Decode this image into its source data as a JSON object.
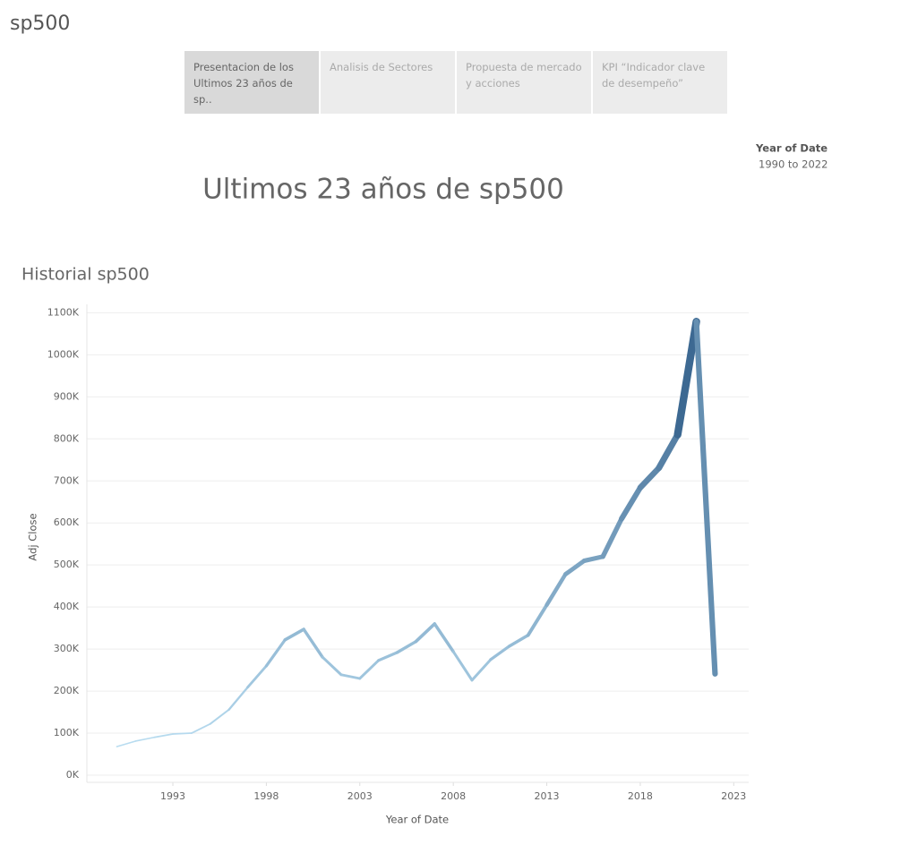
{
  "header": {
    "title": "sp500"
  },
  "tabs": [
    "Presentacion de los Ultimos 23 años de sp..",
    "Analisis de Sectores",
    "Propuesta de mercado y acciones",
    "KPI “Indicador clave de desempeño”"
  ],
  "filter": {
    "label": "Year of Date",
    "value": "1990 to 2022"
  },
  "dashboard_title": "Ultimos 23 años de sp500",
  "chart_data": {
    "type": "line",
    "title": "Historial sp500",
    "x_label": "Year of Date",
    "y_label": "Adj Close",
    "x": [
      1990,
      1991,
      1992,
      1993,
      1994,
      1995,
      1996,
      1997,
      1998,
      1999,
      2000,
      2001,
      2002,
      2003,
      2004,
      2005,
      2006,
      2007,
      2008,
      2009,
      2010,
      2011,
      2012,
      2013,
      2014,
      2015,
      2016,
      2017,
      2018,
      2019,
      2020,
      2021,
      2022
    ],
    "series": [
      {
        "name": "Adj Close",
        "color_range": [
          "#b9ddf1",
          "#2a5783"
        ],
        "values": [
          68000,
          81000,
          90000,
          98000,
          100000,
          122000,
          156000,
          209000,
          260000,
          322000,
          347000,
          281000,
          239000,
          230000,
          273000,
          292000,
          318000,
          360000,
          294000,
          226000,
          275000,
          307000,
          333000,
          405000,
          478000,
          510000,
          520000,
          610000,
          684000,
          731000,
          810000,
          1079000,
          241000
        ]
      }
    ],
    "xlim": [
      1988.4,
      2023.8
    ],
    "xticks": [
      1993,
      1998,
      2003,
      2008,
      2013,
      2018,
      2023
    ],
    "ylim": [
      -17000,
      1120000
    ],
    "yticks": [
      {
        "value": 0,
        "label": "0K"
      },
      {
        "value": 100000,
        "label": "100K"
      },
      {
        "value": 200000,
        "label": "200K"
      },
      {
        "value": 300000,
        "label": "300K"
      },
      {
        "value": 400000,
        "label": "400K"
      },
      {
        "value": 500000,
        "label": "500K"
      },
      {
        "value": 600000,
        "label": "600K"
      },
      {
        "value": 700000,
        "label": "700K"
      },
      {
        "value": 800000,
        "label": "800K"
      },
      {
        "value": 900000,
        "label": "900K"
      },
      {
        "value": 1000000,
        "label": "1000K"
      },
      {
        "value": 1100000,
        "label": "1100K"
      }
    ],
    "grid": true
  }
}
